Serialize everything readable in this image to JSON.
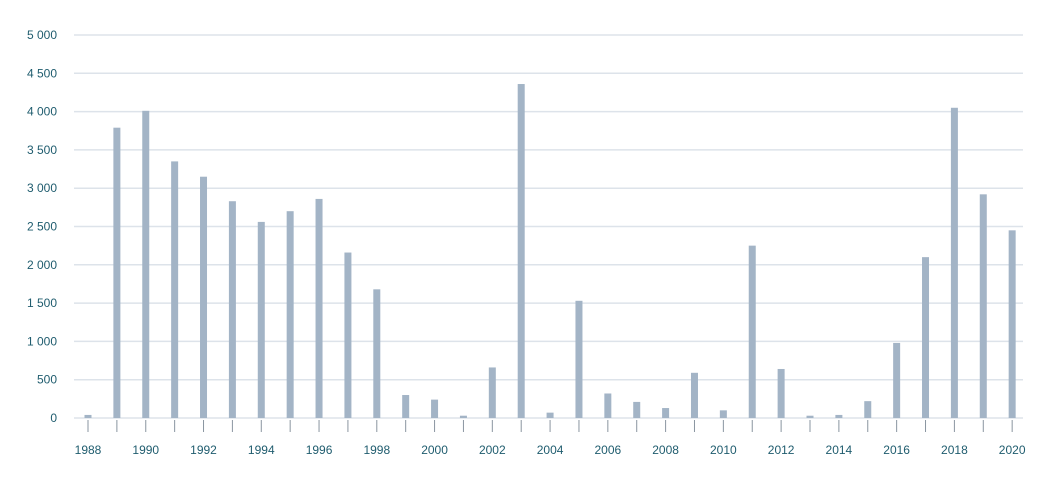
{
  "chart_data": {
    "type": "bar",
    "categories": [
      "1988",
      "1989",
      "1990",
      "1991",
      "1992",
      "1993",
      "1994",
      "1995",
      "1996",
      "1997",
      "1998",
      "1999",
      "2000",
      "2001",
      "2002",
      "2003",
      "2004",
      "2005",
      "2006",
      "2007",
      "2008",
      "2009",
      "2010",
      "2011",
      "2012",
      "2013",
      "2014",
      "2015",
      "2016",
      "2017",
      "2018",
      "2019",
      "2020"
    ],
    "values": [
      40,
      3790,
      4010,
      3350,
      3150,
      2830,
      2560,
      2700,
      2860,
      2160,
      1680,
      300,
      240,
      30,
      660,
      4360,
      70,
      1530,
      320,
      210,
      130,
      590,
      100,
      2250,
      640,
      30,
      40,
      220,
      980,
      2100,
      4050,
      2920,
      2450
    ],
    "title": "",
    "xlabel": "",
    "ylabel": "",
    "ylim": [
      0,
      5000
    ],
    "y_ticks": [
      "0",
      "500",
      "1 000",
      "1 500",
      "2 000",
      "2 500",
      "3 000",
      "3 500",
      "4 000",
      "4 500",
      "5 000"
    ],
    "x_tick_labels": [
      "1988",
      "1990",
      "1992",
      "1994",
      "1996",
      "1998",
      "2000",
      "2002",
      "2004",
      "2006",
      "2008",
      "2010",
      "2012",
      "2014",
      "2016",
      "2018",
      "2020"
    ],
    "grid": true,
    "legend": "none",
    "colors": {
      "bar": "#a3b4c6",
      "grid": "#dde3ea",
      "tick_text": "#1f5c6e",
      "axis_tick": "#8a95a0"
    }
  }
}
